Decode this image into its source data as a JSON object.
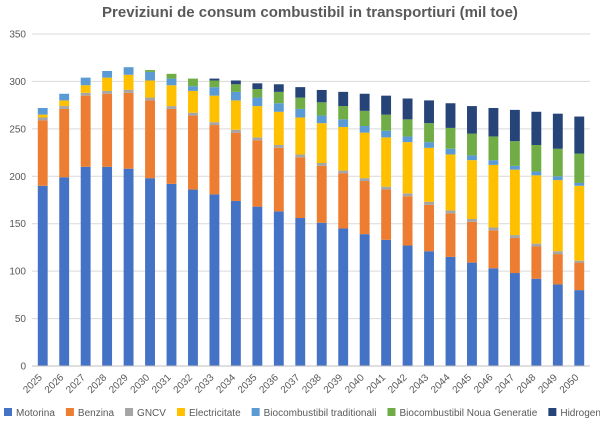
{
  "chart_data": {
    "type": "bar",
    "stacked": true,
    "title": "Previziuni de consum combustibil in transportiuri (mil toe)",
    "xlabel": "",
    "ylabel": "",
    "ylim": [
      0,
      350
    ],
    "yticks": [
      0,
      50,
      100,
      150,
      200,
      250,
      300,
      350
    ],
    "grid": true,
    "legend_position": "bottom",
    "categories": [
      "2025",
      "2026",
      "2027",
      "2028",
      "2029",
      "2030",
      "2031",
      "2032",
      "2033",
      "2034",
      "2035",
      "2036",
      "2037",
      "2038",
      "2039",
      "2040",
      "2041",
      "2042",
      "2043",
      "2044",
      "2045",
      "2046",
      "2047",
      "2048",
      "2049",
      "2050"
    ],
    "series": [
      {
        "name": "Motorina",
        "color": "#4472C4",
        "values": [
          190,
          199,
          210,
          210,
          208,
          198,
          192,
          186,
          181,
          174,
          168,
          163,
          156,
          151,
          145,
          139,
          133,
          127,
          121,
          115,
          109,
          103,
          98,
          92,
          86,
          80
        ]
      },
      {
        "name": "Benzina",
        "color": "#ED7D31",
        "values": [
          69,
          72,
          75,
          77,
          80,
          82,
          79,
          78,
          73,
          72,
          70,
          67,
          64,
          60,
          58,
          56,
          53,
          52,
          49,
          46,
          43,
          40,
          37,
          34,
          32,
          29
        ]
      },
      {
        "name": "GNCV",
        "color": "#A5A5A5",
        "values": [
          3,
          3,
          3,
          3,
          3,
          3,
          3,
          3,
          3,
          3,
          3,
          3,
          3,
          3,
          3,
          3,
          3,
          3,
          3,
          3,
          3,
          3,
          3,
          3,
          3,
          2
        ]
      },
      {
        "name": "Electricitate",
        "color": "#FFC000",
        "values": [
          3,
          6,
          8,
          14,
          16,
          18,
          22,
          23,
          28,
          31,
          33,
          35,
          39,
          42,
          46,
          48,
          52,
          54,
          57,
          59,
          62,
          66,
          69,
          72,
          75,
          79
        ]
      },
      {
        "name": "Biocombustibil traditionali",
        "color": "#5B9BD5",
        "values": [
          7,
          7,
          8,
          7,
          8,
          9,
          7,
          5,
          9,
          9,
          9,
          9,
          9,
          8,
          8,
          7,
          7,
          6,
          6,
          6,
          5,
          5,
          4,
          4,
          4,
          3
        ]
      },
      {
        "name": "Biocombustibil Noua Generatie",
        "color": "#70AD47",
        "values": [
          0,
          0,
          0,
          0,
          0,
          2,
          5,
          8,
          7,
          8,
          9,
          12,
          12,
          14,
          14,
          16,
          17,
          18,
          20,
          22,
          23,
          25,
          26,
          28,
          29,
          31
        ]
      },
      {
        "name": "Hidrogen",
        "color": "#264478",
        "values": [
          0,
          0,
          0,
          0,
          0,
          0,
          0,
          0,
          2,
          4,
          6,
          8,
          11,
          13,
          15,
          18,
          20,
          22,
          24,
          26,
          29,
          30,
          33,
          35,
          37,
          39
        ]
      }
    ]
  }
}
